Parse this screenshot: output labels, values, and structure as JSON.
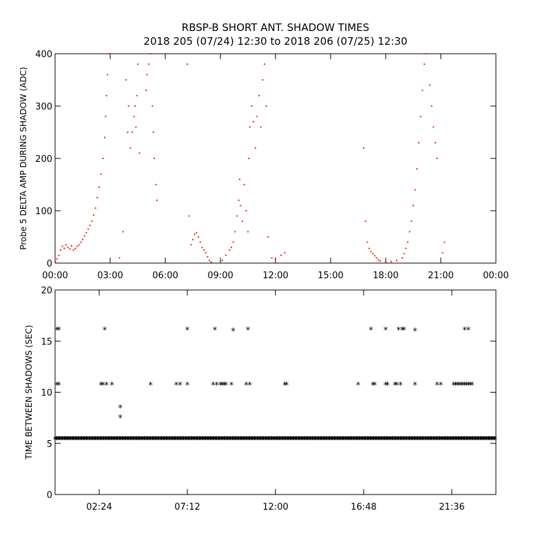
{
  "title": {
    "line1": "RBSP-B SHORT ANT. SHADOW TIMES",
    "line2": "2018 205 (07/24) 12:30 to 2018 206 (07/25) 12:30"
  },
  "chart_data": [
    {
      "type": "scatter",
      "ylabel": "Probe 5 DELTA AMP DURING SHADOW (ADC)",
      "xlabel": "",
      "x_unit": "hours",
      "xlim": [
        0,
        24
      ],
      "ylim": [
        0,
        400
      ],
      "xticks": [
        0,
        3,
        6,
        9,
        12,
        15,
        18,
        21,
        24
      ],
      "xtick_labels": [
        "00:00",
        "03:00",
        "06:00",
        "09:00",
        "12:00",
        "15:00",
        "18:00",
        "21:00",
        "00:00"
      ],
      "yticks": [
        0,
        100,
        200,
        300,
        400
      ],
      "ytick_labels": [
        "0",
        "100",
        "200",
        "300",
        "400"
      ],
      "color": "#e8280a",
      "series": [
        {
          "points": [
            [
              0.0,
              3
            ],
            [
              0.1,
              8
            ],
            [
              0.2,
              15
            ],
            [
              0.3,
              25
            ],
            [
              0.4,
              32
            ],
            [
              0.5,
              28
            ],
            [
              0.6,
              35
            ],
            [
              0.7,
              30
            ],
            [
              0.8,
              27
            ],
            [
              0.9,
              33
            ],
            [
              1.0,
              25
            ],
            [
              1.1,
              28
            ],
            [
              1.2,
              32
            ],
            [
              1.3,
              35
            ],
            [
              1.4,
              40
            ],
            [
              1.5,
              45
            ],
            [
              1.6,
              52
            ],
            [
              1.7,
              58
            ],
            [
              1.8,
              65
            ],
            [
              1.9,
              72
            ],
            [
              2.0,
              80
            ],
            [
              2.1,
              92
            ],
            [
              2.2,
              105
            ],
            [
              2.3,
              125
            ],
            [
              2.4,
              145
            ],
            [
              2.5,
              170
            ],
            [
              2.6,
              200
            ],
            [
              2.7,
              240
            ],
            [
              2.75,
              280
            ],
            [
              2.8,
              320
            ],
            [
              2.85,
              360
            ],
            [
              2.9,
              400
            ],
            [
              3.0,
              400
            ],
            [
              3.5,
              10
            ],
            [
              3.7,
              60
            ],
            [
              3.85,
              350
            ],
            [
              3.95,
              250
            ],
            [
              4.0,
              300
            ],
            [
              4.1,
              220
            ],
            [
              4.2,
              250
            ],
            [
              4.3,
              280
            ],
            [
              4.35,
              300
            ],
            [
              4.4,
              260
            ],
            [
              4.45,
              320
            ],
            [
              4.5,
              380
            ],
            [
              4.6,
              210
            ],
            [
              4.95,
              330
            ],
            [
              5.0,
              360
            ],
            [
              5.1,
              380
            ],
            [
              5.2,
              400
            ],
            [
              5.3,
              300
            ],
            [
              5.35,
              250
            ],
            [
              5.4,
              200
            ],
            [
              5.5,
              150
            ],
            [
              5.55,
              120
            ],
            [
              7.2,
              380
            ],
            [
              7.3,
              90
            ],
            [
              7.4,
              35
            ],
            [
              7.5,
              45
            ],
            [
              7.6,
              55
            ],
            [
              7.7,
              58
            ],
            [
              7.8,
              50
            ],
            [
              7.9,
              40
            ],
            [
              8.0,
              30
            ],
            [
              8.1,
              25
            ],
            [
              8.2,
              20
            ],
            [
              8.3,
              12
            ],
            [
              8.4,
              5
            ],
            [
              8.5,
              2
            ],
            [
              9.1,
              5
            ],
            [
              9.3,
              15
            ],
            [
              9.5,
              25
            ],
            [
              9.6,
              30
            ],
            [
              9.7,
              40
            ],
            [
              9.8,
              60
            ],
            [
              9.9,
              90
            ],
            [
              10.0,
              120
            ],
            [
              10.05,
              160
            ],
            [
              10.1,
              110
            ],
            [
              10.2,
              80
            ],
            [
              10.3,
              150
            ],
            [
              10.4,
              100
            ],
            [
              10.5,
              60
            ],
            [
              10.55,
              200
            ],
            [
              10.6,
              260
            ],
            [
              10.7,
              300
            ],
            [
              10.8,
              270
            ],
            [
              10.9,
              220
            ],
            [
              11.0,
              280
            ],
            [
              11.1,
              320
            ],
            [
              11.2,
              260
            ],
            [
              11.3,
              350
            ],
            [
              11.4,
              380
            ],
            [
              11.5,
              300
            ],
            [
              11.6,
              50
            ],
            [
              11.8,
              10
            ],
            [
              12.0,
              8
            ],
            [
              12.3,
              15
            ],
            [
              12.5,
              20
            ],
            [
              16.8,
              220
            ],
            [
              16.9,
              80
            ],
            [
              17.0,
              40
            ],
            [
              17.1,
              28
            ],
            [
              17.2,
              22
            ],
            [
              17.3,
              18
            ],
            [
              17.4,
              14
            ],
            [
              17.5,
              10
            ],
            [
              17.6,
              6
            ],
            [
              17.7,
              4
            ],
            [
              18.0,
              2
            ],
            [
              18.3,
              3
            ],
            [
              18.6,
              5
            ],
            [
              18.9,
              10
            ],
            [
              19.0,
              18
            ],
            [
              19.1,
              28
            ],
            [
              19.2,
              40
            ],
            [
              19.3,
              60
            ],
            [
              19.4,
              80
            ],
            [
              19.5,
              110
            ],
            [
              19.6,
              140
            ],
            [
              19.7,
              180
            ],
            [
              19.8,
              230
            ],
            [
              19.9,
              280
            ],
            [
              20.0,
              330
            ],
            [
              20.1,
              380
            ],
            [
              20.2,
              400
            ],
            [
              20.4,
              340
            ],
            [
              20.5,
              300
            ],
            [
              20.6,
              260
            ],
            [
              20.7,
              230
            ],
            [
              20.8,
              200
            ],
            [
              21.1,
              20
            ],
            [
              21.2,
              40
            ]
          ]
        }
      ]
    },
    {
      "type": "scatter",
      "ylabel": "TIME BETWEEN SHADOWS (SEC)",
      "xlabel": "",
      "x_unit": "hours",
      "xlim": [
        0,
        24
      ],
      "ylim": [
        0,
        20
      ],
      "xticks": [
        2.4,
        7.2,
        12,
        16.8,
        21.6
      ],
      "xtick_labels": [
        "02:24",
        "07:12",
        "12:00",
        "16:48",
        "21:36"
      ],
      "yticks": [
        0,
        5,
        10,
        15,
        20
      ],
      "ytick_labels": [
        "0",
        "5",
        "10",
        "15",
        "20"
      ],
      "marker": "*",
      "color": "#000000",
      "baseline_value": 5.4,
      "baseline_range": [
        0,
        24
      ],
      "series": [
        {
          "points": [
            [
              0.1,
              16.1
            ],
            [
              0.2,
              16.1
            ],
            [
              0.1,
              10.7
            ],
            [
              0.2,
              10.7
            ],
            [
              2.5,
              10.7
            ],
            [
              2.6,
              10.7
            ],
            [
              2.7,
              16.1
            ],
            [
              2.8,
              10.7
            ],
            [
              3.1,
              10.7
            ],
            [
              3.55,
              8.5
            ],
            [
              3.55,
              7.5
            ],
            [
              5.2,
              10.7
            ],
            [
              6.6,
              10.7
            ],
            [
              6.8,
              10.7
            ],
            [
              7.2,
              10.7
            ],
            [
              7.2,
              16.1
            ],
            [
              8.6,
              10.7
            ],
            [
              8.7,
              16.1
            ],
            [
              8.8,
              10.7
            ],
            [
              9.0,
              10.7
            ],
            [
              9.1,
              10.7
            ],
            [
              9.2,
              10.7
            ],
            [
              9.3,
              10.7
            ],
            [
              9.6,
              10.7
            ],
            [
              9.7,
              16.0
            ],
            [
              10.4,
              10.7
            ],
            [
              10.5,
              16.1
            ],
            [
              10.6,
              10.7
            ],
            [
              12.5,
              10.7
            ],
            [
              12.6,
              10.7
            ],
            [
              16.5,
              10.7
            ],
            [
              17.2,
              16.1
            ],
            [
              17.3,
              10.7
            ],
            [
              17.4,
              10.7
            ],
            [
              18.0,
              10.7
            ],
            [
              18.1,
              10.7
            ],
            [
              18.0,
              16.1
            ],
            [
              18.5,
              10.7
            ],
            [
              18.6,
              10.7
            ],
            [
              18.7,
              16.1
            ],
            [
              18.8,
              10.7
            ],
            [
              18.9,
              16.1
            ],
            [
              19.0,
              16.1
            ],
            [
              19.6,
              16.0
            ],
            [
              19.6,
              10.7
            ],
            [
              20.8,
              10.7
            ],
            [
              21.0,
              10.7
            ],
            [
              21.7,
              10.7
            ],
            [
              21.8,
              10.7
            ],
            [
              21.9,
              10.7
            ],
            [
              22.0,
              10.7
            ],
            [
              22.1,
              10.7
            ],
            [
              22.2,
              10.7
            ],
            [
              22.3,
              10.7
            ],
            [
              22.4,
              10.7
            ],
            [
              22.5,
              10.7
            ],
            [
              22.6,
              10.7
            ],
            [
              22.7,
              10.7
            ],
            [
              22.3,
              16.1
            ],
            [
              22.5,
              16.1
            ]
          ]
        }
      ]
    }
  ]
}
